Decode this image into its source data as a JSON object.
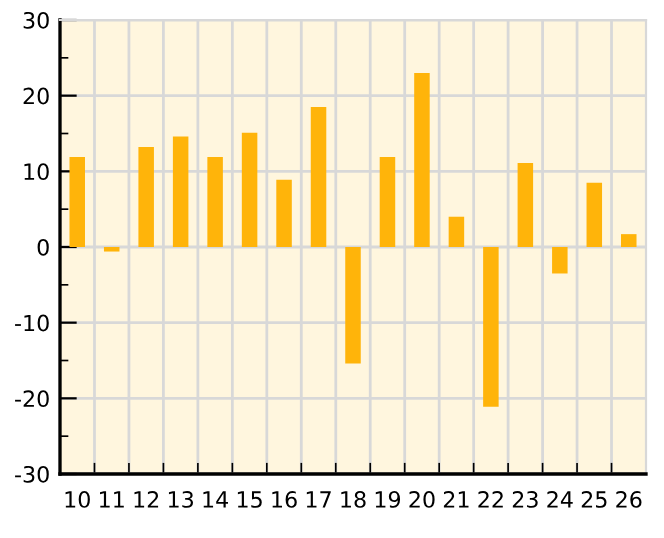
{
  "chart_data": {
    "type": "bar",
    "categories": [
      "10",
      "11",
      "12",
      "13",
      "14",
      "15",
      "16",
      "17",
      "18",
      "19",
      "20",
      "21",
      "22",
      "23",
      "24",
      "25",
      "26"
    ],
    "values": [
      11.9,
      -0.6,
      13.2,
      14.6,
      11.9,
      15.1,
      8.9,
      18.5,
      -15.4,
      11.9,
      23.0,
      4.0,
      -21.1,
      11.1,
      -3.5,
      8.5,
      1.7
    ],
    "color": "#ffb40a",
    "ylim": [
      -30,
      30
    ],
    "yticks": [
      -30,
      {
        "value": -25,
        "label": null
      },
      -20,
      {
        "value": -15,
        "label": null
      },
      -10,
      {
        "value": -5,
        "label": null
      },
      0,
      {
        "value": 5,
        "label": null
      },
      10,
      {
        "value": 15,
        "label": null
      },
      20,
      {
        "value": 25,
        "label": null
      },
      30
    ],
    "grid": true
  }
}
